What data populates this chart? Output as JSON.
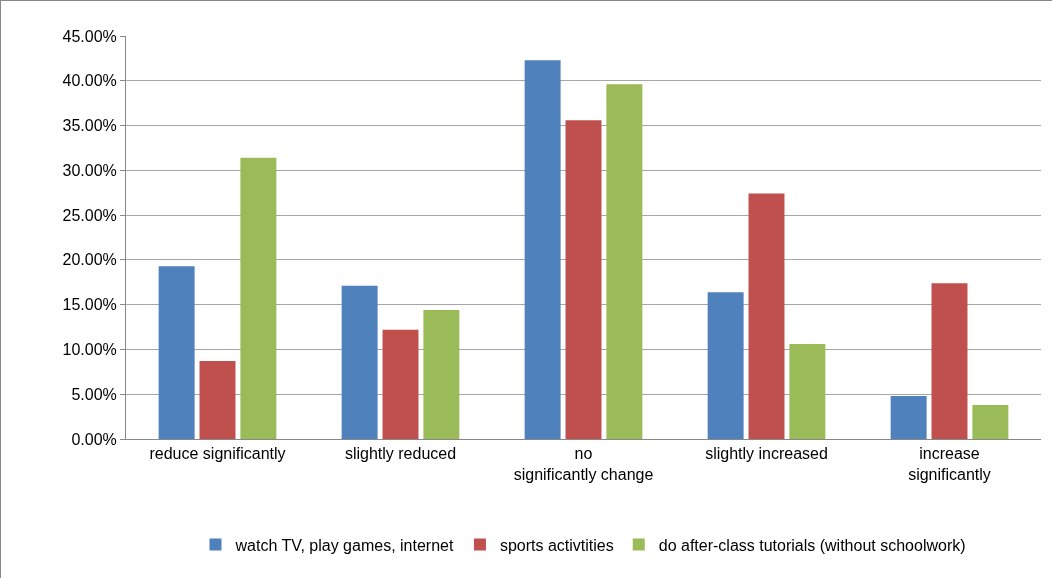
{
  "chart_data": {
    "type": "bar",
    "categories": [
      "reduce significantly",
      "slightly reduced",
      "no significantly change",
      "slightly increased",
      "increase significantly"
    ],
    "series": [
      {
        "name": "watch TV, play games, internet",
        "color": "#4f81bd",
        "values": [
          19.3,
          17.1,
          42.3,
          16.4,
          4.8
        ]
      },
      {
        "name": "sports activtities",
        "color": "#c0504d",
        "values": [
          8.7,
          12.2,
          35.6,
          27.4,
          17.4
        ]
      },
      {
        "name": "do after-class tutorials (without schoolwork)",
        "color": "#9bbb59",
        "values": [
          31.4,
          14.4,
          39.6,
          10.6,
          3.8
        ]
      }
    ],
    "ylim": [
      0,
      45
    ],
    "yticks": [
      {
        "value": 0,
        "label": "0.00%"
      },
      {
        "value": 5,
        "label": "5.00%"
      },
      {
        "value": 10,
        "label": "10.00%"
      },
      {
        "value": 15,
        "label": "15.00%"
      },
      {
        "value": 20,
        "label": "20.00%"
      },
      {
        "value": 25,
        "label": "25.00%"
      },
      {
        "value": 30,
        "label": "30.00%"
      },
      {
        "value": 35,
        "label": "35.00%"
      },
      {
        "value": 40,
        "label": "40.00%"
      },
      {
        "value": 45,
        "label": "45.00%"
      }
    ],
    "grid": "y",
    "legend": "bottom"
  }
}
